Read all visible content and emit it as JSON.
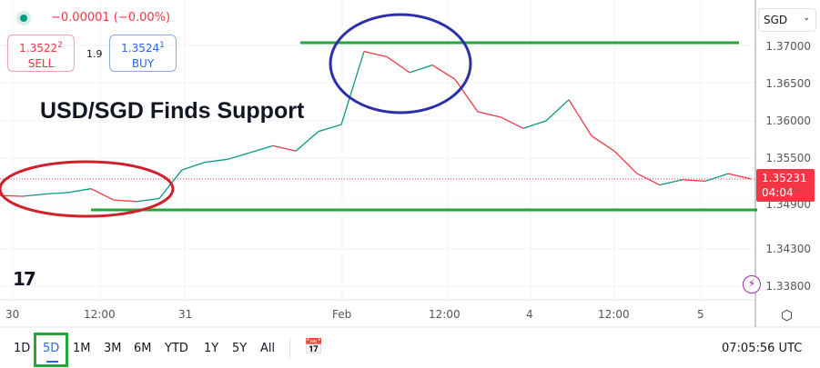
{
  "header": {
    "change": "−0.00001 (−0.00%)",
    "status_color": "#089981",
    "sell": {
      "price": "1.3522",
      "price_sup": "2",
      "label": "SELL"
    },
    "spread": "1.9",
    "buy": {
      "price": "1.3524",
      "price_sup": "1",
      "label": "BUY"
    }
  },
  "annotation": {
    "title": "USD/SGD Finds Support"
  },
  "currency_selector": "SGD",
  "y_axis": [
    "1.37000",
    "1.36500",
    "1.36000",
    "1.35500",
    "1.34900",
    "1.34300",
    "1.33800"
  ],
  "x_axis": [
    "30",
    "12:00",
    "31",
    "Feb",
    "12:00",
    "4",
    "12:00",
    "5"
  ],
  "last_price": {
    "price": "1.35231",
    "countdown": "04:04",
    "color": "#f23645"
  },
  "toolbar": {
    "ranges": [
      "1D",
      "5D",
      "1M",
      "3M",
      "6M",
      "YTD",
      "1Y",
      "5Y",
      "All"
    ],
    "selected": "5D",
    "clock": "07:05:56 UTC"
  },
  "colors": {
    "support_line": "#22a83a",
    "ellipse_left": "#d0202a",
    "ellipse_top": "#2c2fa8",
    "accent": "#2962ff"
  },
  "chart_data": {
    "type": "line",
    "symbol": "USD/SGD",
    "ylim": [
      1.338,
      1.3712
    ],
    "values": [
      1.3501,
      1.35,
      1.3503,
      1.3505,
      1.351,
      1.3495,
      1.3493,
      1.3497,
      1.3535,
      1.3545,
      1.3549,
      1.3558,
      1.3567,
      1.356,
      1.3586,
      1.3595,
      1.3692,
      1.3685,
      1.3664,
      1.3674,
      1.3655,
      1.3612,
      1.3605,
      1.359,
      1.36,
      1.3628,
      1.358,
      1.356,
      1.353,
      1.3515,
      1.3522,
      1.352,
      1.353,
      1.3523
    ],
    "support_levels": [
      1.3487
    ],
    "resistance_levels": [
      1.3704
    ]
  }
}
